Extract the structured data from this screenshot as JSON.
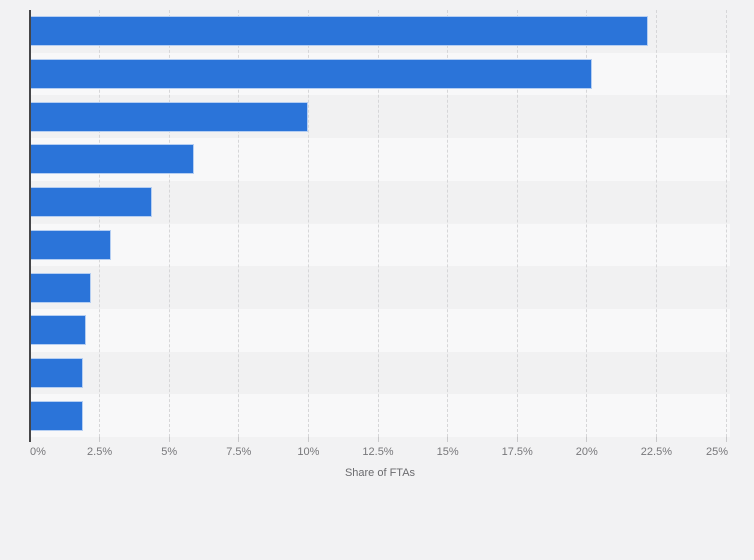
{
  "chart_data": {
    "type": "bar",
    "orientation": "horizontal",
    "title": "",
    "xlabel": "Share of FTAs",
    "ylabel": "",
    "categories": [
      "",
      "",
      "",
      "",
      "",
      "",
      "",
      "",
      "",
      ""
    ],
    "values": [
      22.2,
      20.2,
      10.0,
      5.9,
      4.4,
      2.9,
      2.2,
      2.0,
      1.9,
      1.9
    ],
    "unit": "%",
    "xlim": [
      0,
      25
    ],
    "x_tick_labels": [
      "0%",
      "2.5%",
      "5%",
      "7.5%",
      "10%",
      "12.5%",
      "15%",
      "17.5%",
      "20%",
      "22.5%",
      "25%"
    ],
    "x_tick_step": 2.5,
    "grid": "vertical-dashed",
    "legend": "none",
    "colors": {
      "bar": "#2b74d9",
      "bar_outline": "rgba(255,255,255,0.65)",
      "background": "#f2f2f3",
      "row_band_even": "#f1f1f2",
      "row_band_odd": "#f8f8f9",
      "gridline": "#d6d6d8",
      "axis_line": "#454547",
      "tick_label": "#77777a",
      "axis_title": "#6b6b6e"
    }
  }
}
